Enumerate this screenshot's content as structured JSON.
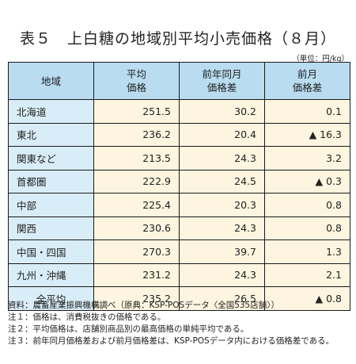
{
  "title": "表５　上白糖の地域別平均小売価格（８月）",
  "unit": "（単位：円/kg）",
  "headers": {
    "region": "地域",
    "avg_line1": "平均",
    "avg_line2": "価格",
    "yoy_line1": "前年同月",
    "yoy_line2": "価格差",
    "mom_line1": "前月",
    "mom_line2": "価格差"
  },
  "rows": [
    {
      "region": "北海道",
      "avg": "251.5",
      "yoy": "30.2",
      "mom": "0.1"
    },
    {
      "region": "東北",
      "avg": "236.2",
      "yoy": "20.4",
      "mom": "▲ 16.3"
    },
    {
      "region": "関東など",
      "avg": "213.5",
      "yoy": "24.3",
      "mom": "3.2"
    },
    {
      "region": "首都圏",
      "avg": "222.9",
      "yoy": "24.5",
      "mom": "▲ 0.3"
    },
    {
      "region": "中部",
      "avg": "225.4",
      "yoy": "20.3",
      "mom": "0.8"
    },
    {
      "region": "関西",
      "avg": "230.6",
      "yoy": "24.3",
      "mom": "0.8"
    },
    {
      "region": "中国・四国",
      "avg": "270.3",
      "yoy": "39.7",
      "mom": "1.3"
    },
    {
      "region": "九州・沖縄",
      "avg": "231.2",
      "yoy": "24.3",
      "mom": "2.1"
    },
    {
      "region": "全平均",
      "avg": "235.2",
      "yoy": "26.5",
      "mom": "▲ 0.8"
    }
  ],
  "notes": [
    {
      "prefix": "資料：",
      "text": "農畜産業振興機構調べ（原典：KSP-POSデータ〈全国535店舗〉）"
    },
    {
      "prefix": "注１：",
      "text": "価格は、消費税抜きの価格である。"
    },
    {
      "prefix": "注２：",
      "text": "平均価格は、店舗別商品別の最高価格の単純平均である。"
    },
    {
      "prefix": "注３：",
      "text": "前年同月価格差および前月価格差は、KSP-POSデータ内における価格差である。"
    }
  ]
}
